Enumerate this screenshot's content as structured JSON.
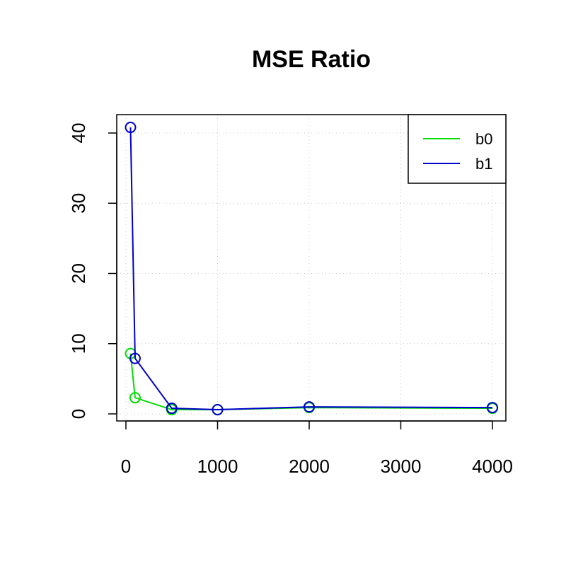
{
  "chart_data": {
    "type": "line",
    "title": "MSE Ratio",
    "xlabel": "",
    "ylabel": "",
    "x": [
      50,
      100,
      500,
      1000,
      2000,
      4000
    ],
    "xlim": [
      0,
      4000
    ],
    "ylim": [
      0,
      40
    ],
    "xticks": [
      0,
      1000,
      2000,
      3000,
      4000
    ],
    "yticks": [
      0,
      10,
      20,
      30,
      40
    ],
    "xtick_labels": [
      "0",
      "1000",
      "2000",
      "3000",
      "4000"
    ],
    "ytick_labels": [
      "0",
      "10",
      "20",
      "30",
      "40"
    ],
    "grid": "dotted",
    "legend_position": "top-right",
    "series": [
      {
        "name": "b0",
        "color": "#00dd00",
        "values": [
          8.6,
          2.3,
          0.6,
          0.6,
          0.9,
          0.8
        ]
      },
      {
        "name": "b1",
        "color": "#0000cc",
        "values": [
          40.8,
          7.9,
          0.8,
          0.6,
          1.0,
          0.9
        ]
      }
    ]
  }
}
